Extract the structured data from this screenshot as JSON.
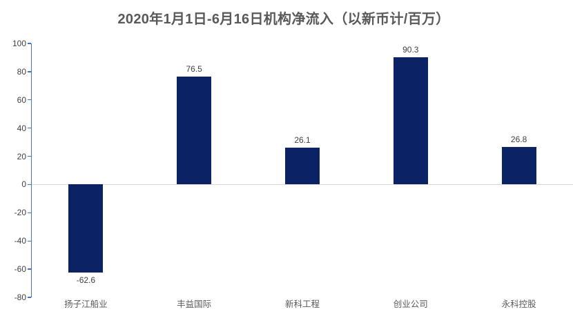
{
  "chart_data": {
    "type": "bar",
    "title": "2020年1月1日-6月16日机构净流入（以新币计/百万）",
    "categories": [
      "扬子江船业",
      "丰益国际",
      "新科工程",
      "创业公司",
      "永科控股"
    ],
    "values": [
      -62.6,
      76.5,
      26.1,
      90.3,
      26.8
    ],
    "data_labels": [
      "-62.6",
      "76.5",
      "26.1",
      "90.3",
      "26.8"
    ],
    "ylim": [
      -80,
      100
    ],
    "ytick_step": 20,
    "ytick_labels": [
      "100",
      "80",
      "60",
      "40",
      "20",
      "0",
      "-20",
      "-40",
      "-60",
      "-80"
    ],
    "xlabel": "",
    "ylabel": "",
    "grid": false,
    "legend": false,
    "zero_baseline": true,
    "colors": {
      "bar": "#0b2265",
      "axis": "#4472c4",
      "zero_line": "#d9d9d9",
      "title_text": "#595959",
      "tick_text": "#404040",
      "value_label_text": "#404040",
      "category_text": "#595959",
      "background": "#ffffff"
    }
  }
}
